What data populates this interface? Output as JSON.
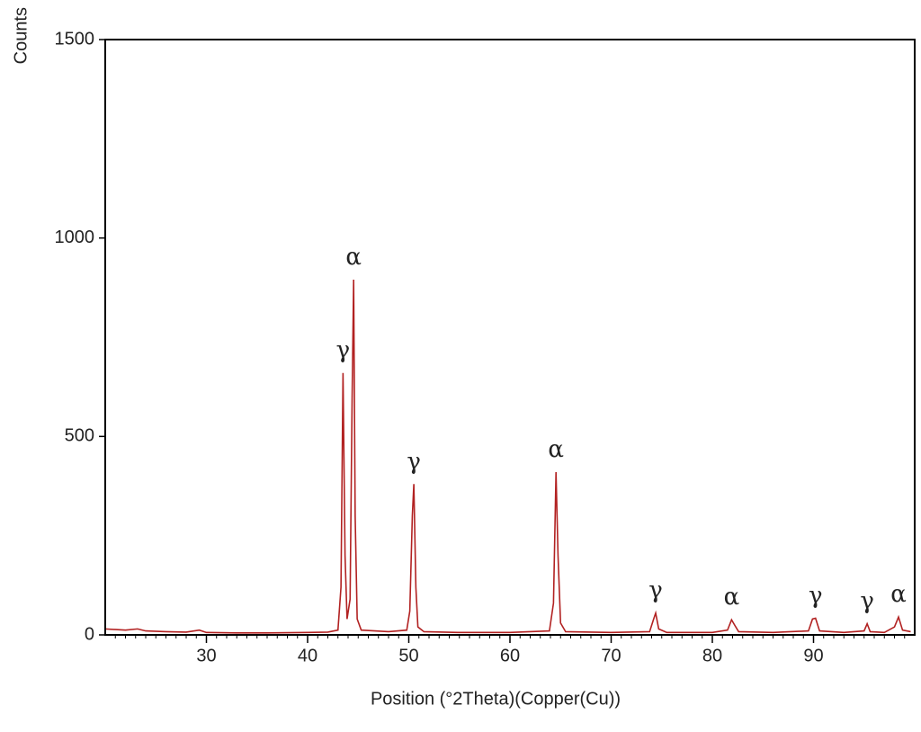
{
  "chart_data": {
    "type": "line",
    "x_label": "Position (°2Theta)(Copper(Cu))",
    "y_label": "Counts",
    "x": [
      20,
      22,
      23.2,
      24,
      26,
      28,
      29.3,
      30,
      33,
      36,
      40,
      42,
      43,
      43.3,
      43.5,
      43.7,
      43.9,
      44.2,
      44.4,
      44.55,
      44.7,
      44.9,
      45.3,
      48,
      49.8,
      50.1,
      50.35,
      50.5,
      50.7,
      50.9,
      51.5,
      55,
      60,
      63.9,
      64.3,
      64.55,
      64.75,
      65,
      65.5,
      70,
      73.8,
      74.2,
      74.4,
      74.7,
      75.5,
      80,
      81.5,
      81.9,
      82.2,
      82.6,
      86,
      89.5,
      89.9,
      90.2,
      90.6,
      93,
      95,
      95.3,
      95.6,
      97,
      98,
      98.4,
      98.8,
      99.6
    ],
    "series": [
      {
        "color": "#b22222",
        "values": [
          15,
          12,
          15,
          10,
          8,
          7,
          12,
          6,
          5,
          5,
          6,
          7,
          12,
          120,
          660,
          200,
          40,
          90,
          600,
          895,
          300,
          40,
          12,
          8,
          12,
          60,
          300,
          380,
          120,
          20,
          8,
          6,
          6,
          10,
          80,
          410,
          200,
          30,
          8,
          6,
          8,
          40,
          55,
          15,
          6,
          6,
          12,
          38,
          25,
          8,
          6,
          10,
          40,
          42,
          10,
          6,
          10,
          28,
          8,
          6,
          20,
          45,
          12,
          8
        ]
      }
    ],
    "annotations": [
      {
        "text": "γ",
        "x": 43.5
      },
      {
        "text": "α",
        "x": 44.55
      },
      {
        "text": "γ",
        "x": 50.5
      },
      {
        "text": "α",
        "x": 64.55
      },
      {
        "text": "γ",
        "x": 74.4
      },
      {
        "text": "α",
        "x": 81.9
      },
      {
        "text": "γ",
        "x": 90.2
      },
      {
        "text": "γ",
        "x": 95.3
      },
      {
        "text": "α",
        "x": 98.4
      }
    ],
    "xlim": [
      20,
      100
    ],
    "xticks": [
      30,
      40,
      50,
      60,
      70,
      80,
      90
    ],
    "xminorticks": [
      21,
      22,
      23,
      24,
      25,
      26,
      27,
      28,
      29,
      31,
      32,
      33,
      34,
      35,
      36,
      37,
      38,
      39,
      41,
      42,
      43,
      44,
      45,
      46,
      47,
      48,
      49,
      51,
      52,
      53,
      54,
      55,
      56,
      57,
      58,
      59,
      61,
      62,
      63,
      64,
      65,
      66,
      67,
      68,
      69,
      71,
      72,
      73,
      74,
      75,
      76,
      77,
      78,
      79,
      81,
      82,
      83,
      84,
      85,
      86,
      87,
      88,
      89,
      91,
      92,
      93,
      94,
      95,
      96,
      97,
      98,
      99
    ],
    "ylim": [
      0,
      1500
    ],
    "yticks": [
      0,
      500,
      1000,
      1500
    ]
  }
}
